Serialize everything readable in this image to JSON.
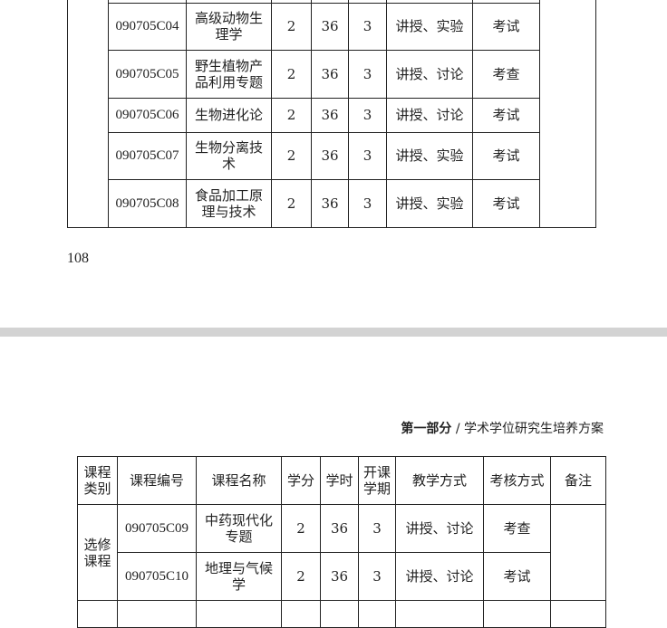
{
  "page_top": {
    "rows": [
      {
        "code": "090705C04",
        "name": "高级动物生理学",
        "credits": "2",
        "hours": "36",
        "semester": "3",
        "teaching": "讲授、实验",
        "assessment": "考试"
      },
      {
        "code": "090705C05",
        "name": "野生植物产品利用专题",
        "credits": "2",
        "hours": "36",
        "semester": "3",
        "teaching": "讲授、讨论",
        "assessment": "考查"
      },
      {
        "code": "090705C06",
        "name": "生物进化论",
        "credits": "2",
        "hours": "36",
        "semester": "3",
        "teaching": "讲授、讨论",
        "assessment": "考试"
      },
      {
        "code": "090705C07",
        "name": "生物分离技术",
        "credits": "2",
        "hours": "36",
        "semester": "3",
        "teaching": "讲授、实验",
        "assessment": "考试"
      },
      {
        "code": "090705C08",
        "name": "食品加工原理与技术",
        "credits": "2",
        "hours": "36",
        "semester": "3",
        "teaching": "讲授、实验",
        "assessment": "考试"
      }
    ],
    "page_number": "108"
  },
  "page_bottom": {
    "running_header_bold": "第一部分",
    "running_header_rest": " / 学术学位研究生培养方案",
    "headers": [
      "课程类别",
      "课程编号",
      "课程名称",
      "学分",
      "学时",
      "开课学期",
      "教学方式",
      "考核方式",
      "备注"
    ],
    "category": "选修课程",
    "rows": [
      {
        "code": "090705C09",
        "name": "中药现代化专题",
        "credits": "2",
        "hours": "36",
        "semester": "3",
        "teaching": "讲授、讨论",
        "assessment": "考查"
      },
      {
        "code": "090705C10",
        "name": "地理与气候学",
        "credits": "2",
        "hours": "36",
        "semester": "3",
        "teaching": "讲授、讨论",
        "assessment": "考试"
      }
    ]
  }
}
